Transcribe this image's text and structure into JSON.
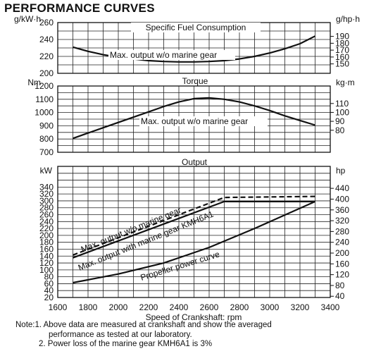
{
  "heading": "PERFORMANCE CURVES",
  "chart_data": [
    {
      "type": "line",
      "title": "Specific Fuel Consumption",
      "ylabel": "g/kW·h",
      "y2label": "g/hp·h",
      "ylim": [
        200,
        260
      ],
      "yticks": [
        200,
        220,
        240,
        260
      ],
      "y2ticks": [
        150,
        160,
        170,
        180,
        190
      ],
      "series": [
        {
          "name": "Max. output w/o marine gear",
          "x": [
            1700,
            1800,
            1900,
            2000,
            2100,
            2200,
            2300,
            2400,
            2500,
            2600,
            2700,
            2800,
            2900,
            3000,
            3100,
            3200,
            3300
          ],
          "y": [
            231,
            226,
            222,
            219,
            217,
            215,
            214,
            213.5,
            213.5,
            214,
            215,
            217,
            220,
            224,
            229,
            235,
            244
          ]
        }
      ]
    },
    {
      "type": "line",
      "title": "Torque",
      "ylabel": "Nm",
      "y2label": "kg·m",
      "ylim": [
        700,
        1200
      ],
      "yticks": [
        700,
        800,
        900,
        1000,
        1100,
        1200
      ],
      "y2ticks": [
        80,
        90,
        100,
        110
      ],
      "series": [
        {
          "name": "Max. output w/o marine gear",
          "x": [
            1700,
            1800,
            1900,
            2000,
            2100,
            2200,
            2300,
            2400,
            2500,
            2600,
            2700,
            2800,
            2900,
            3000,
            3100,
            3200,
            3300
          ],
          "y": [
            805,
            845,
            885,
            925,
            965,
            1005,
            1045,
            1080,
            1105,
            1110,
            1100,
            1080,
            1050,
            1015,
            975,
            940,
            905
          ]
        }
      ]
    },
    {
      "type": "line",
      "title": "Output",
      "xlabel": "Speed of Crankshaft: rpm",
      "ylabel": "kW",
      "y2label": "hp",
      "xlim": [
        1600,
        3400
      ],
      "xticks": [
        1600,
        1800,
        2000,
        2200,
        2400,
        2600,
        2800,
        3000,
        3200,
        3400
      ],
      "ylim": [
        20,
        400
      ],
      "yticks": [
        20,
        40,
        60,
        80,
        100,
        120,
        140,
        160,
        180,
        200,
        220,
        240,
        260,
        280,
        300,
        320,
        340
      ],
      "y2ticks": [
        40,
        80,
        120,
        160,
        200,
        240,
        280,
        320,
        360,
        400,
        440
      ],
      "series": [
        {
          "name": "Max. output w/o marine gear",
          "style": "dashed",
          "x": [
            1700,
            2700,
            3300
          ],
          "y": [
            143,
            310,
            313
          ]
        },
        {
          "name": "Max. output with marine gear KMH6A1",
          "style": "solid",
          "x": [
            1700,
            2700,
            3300
          ],
          "y": [
            135,
            298,
            298
          ]
        },
        {
          "name": "Propeller power curve",
          "style": "solid",
          "x": [
            1700,
            2000,
            2300,
            2600,
            2900,
            3300
          ],
          "y": [
            63,
            88,
            120,
            165,
            220,
            298
          ]
        }
      ]
    }
  ],
  "notes": [
    "Note:1. Above data are measured at crankshaft and show the averaged",
    "performance as tested at our laboratory.",
    "2. Power loss of the marine gear KMH6A1 is 3%"
  ]
}
